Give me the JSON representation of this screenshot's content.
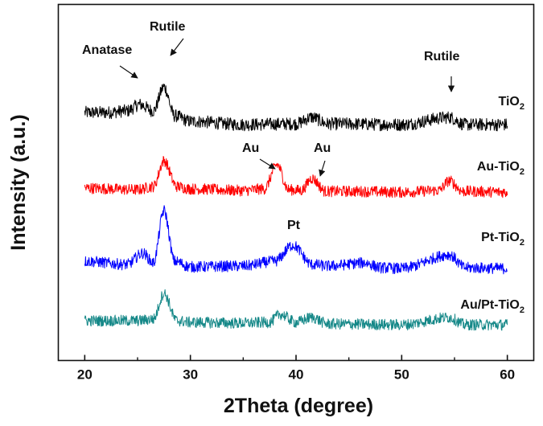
{
  "chart_data": {
    "type": "line",
    "xlabel": "2Theta (degree)",
    "ylabel": "Intensity (a.u.)",
    "xlim": [
      17.5,
      62.5
    ],
    "xticks": [
      "20",
      "30",
      "40",
      "50",
      "60"
    ],
    "grid": false,
    "legend": "labels beside each trace (right)",
    "series": [
      {
        "name": "TiO2",
        "label_main": "TiO",
        "label_sub": "2",
        "color": "#000000",
        "noise": 8,
        "x": [
          20,
          22,
          24,
          25.2,
          26.5,
          27.5,
          28.5,
          30,
          35,
          40,
          41.5,
          43,
          50,
          54.5,
          56,
          60
        ],
        "y": [
          18,
          18,
          20,
          28,
          20,
          50,
          14,
          7,
          3,
          4,
          12,
          4,
          3,
          12,
          3,
          3
        ]
      },
      {
        "name": "Au-TiO2",
        "label_main": "Au-TiO",
        "label_sub": "2",
        "color": "#ff0000",
        "noise": 7,
        "x": [
          20,
          25,
          26.5,
          27.5,
          28.7,
          30,
          35,
          37,
          38.2,
          39.3,
          40.5,
          41.5,
          42.8,
          45,
          50,
          53.5,
          54.5,
          55.8,
          60
        ],
        "y": [
          8,
          6,
          10,
          42,
          10,
          7,
          5,
          7,
          37,
          6,
          5,
          20,
          4,
          4,
          3,
          5,
          17,
          4,
          3
        ]
      },
      {
        "name": "Pt-TiO2",
        "label_main": "Pt-TiO",
        "label_sub": "2",
        "color": "#0000ff",
        "noise": 7,
        "x": [
          20,
          24,
          25.5,
          26.5,
          27.5,
          28.5,
          30,
          35,
          38,
          39.7,
          41.5,
          43,
          46.5,
          48,
          50,
          54.5,
          56,
          60
        ],
        "y": [
          12,
          8,
          22,
          10,
          75,
          12,
          5,
          6,
          12,
          32,
          8,
          6,
          10,
          4,
          3,
          20,
          4,
          3
        ]
      },
      {
        "name": "Au/Pt-TiO2",
        "label_main": "Au/Pt-TiO",
        "label_sub": "2",
        "color": "#158888",
        "noise": 7,
        "x": [
          20,
          25,
          26.5,
          27.5,
          28.7,
          30,
          35,
          37.5,
          38.5,
          40,
          41.5,
          43,
          50,
          54.5,
          56,
          60
        ],
        "y": [
          8,
          8,
          10,
          42,
          8,
          6,
          5,
          6,
          16,
          6,
          12,
          4,
          3,
          12,
          3,
          3
        ]
      }
    ],
    "annotations": [
      {
        "text": "Anatase",
        "series": "TiO2",
        "x": 25.2
      },
      {
        "text": "Rutile",
        "series": "TiO2",
        "x": 27.5
      },
      {
        "text": "Rutile",
        "series": "TiO2",
        "x": 54.5
      },
      {
        "text": "Au",
        "series": "Au-TiO2",
        "x": 38.2
      },
      {
        "text": "Au",
        "series": "Au-TiO2",
        "x": 41.5
      },
      {
        "text": "Pt",
        "series": "Pt-TiO2",
        "x": 39.7
      }
    ]
  }
}
